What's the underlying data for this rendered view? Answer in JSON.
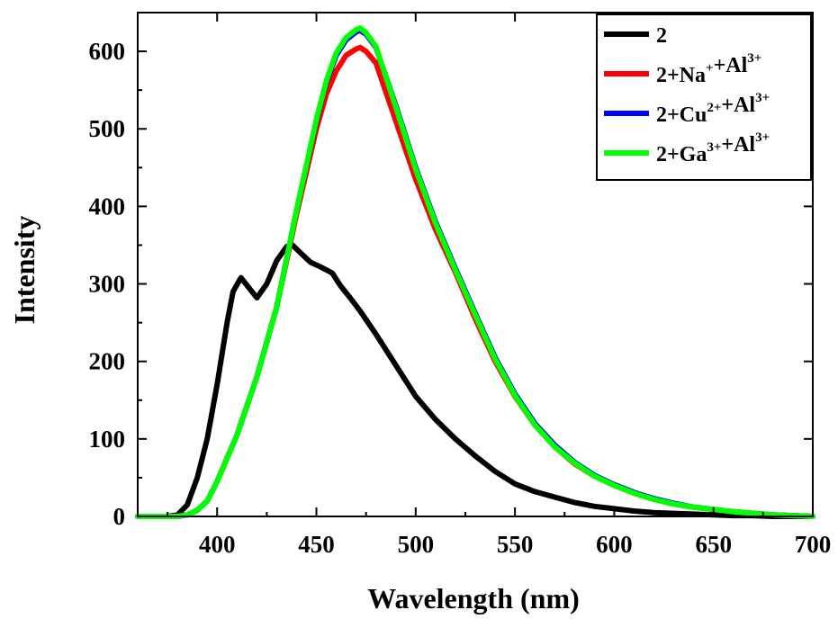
{
  "chart_data": {
    "type": "line",
    "title": "",
    "xlabel": "Wavelength (nm)",
    "ylabel": "Intensity",
    "xlim": [
      360,
      700
    ],
    "ylim": [
      0,
      650
    ],
    "x_ticks": [
      400,
      450,
      500,
      550,
      600,
      650,
      700
    ],
    "x_tick_labels": [
      "400",
      "450",
      "500",
      "550",
      "600",
      "650",
      "700"
    ],
    "y_ticks": [
      0,
      100,
      200,
      300,
      400,
      500,
      600
    ],
    "y_tick_labels": [
      "0",
      "100",
      "200",
      "300",
      "400",
      "500",
      "600"
    ],
    "grid": false,
    "legend_position": "top-right",
    "series": [
      {
        "name": "2",
        "legend_parts": [
          [
            "2",
            ""
          ]
        ],
        "color": "#000000",
        "x": [
          360,
          375,
          380,
          385,
          390,
          395,
          400,
          405,
          408,
          412,
          416,
          420,
          425,
          430,
          435,
          438,
          442,
          447,
          452,
          458,
          462,
          467,
          472,
          480,
          490,
          500,
          510,
          520,
          530,
          540,
          550,
          560,
          570,
          580,
          590,
          600,
          610,
          620,
          630,
          640,
          650,
          660,
          670,
          680,
          690,
          700
        ],
        "y": [
          0,
          0,
          2,
          15,
          50,
          100,
          170,
          250,
          290,
          308,
          295,
          282,
          300,
          330,
          348,
          350,
          340,
          328,
          322,
          314,
          298,
          282,
          265,
          235,
          195,
          155,
          125,
          100,
          78,
          58,
          42,
          32,
          25,
          18,
          13,
          10,
          7,
          5,
          4,
          3,
          2,
          1,
          1,
          0,
          0,
          0
        ]
      },
      {
        "name": "2+Na+ +Al3+",
        "legend_parts": [
          [
            "2+Na",
            "+"
          ],
          [
            "+Al",
            "3+"
          ]
        ],
        "color": "#ff0000",
        "x": [
          360,
          380,
          385,
          390,
          395,
          400,
          410,
          420,
          430,
          440,
          450,
          455,
          460,
          465,
          470,
          472,
          475,
          480,
          490,
          500,
          510,
          520,
          530,
          540,
          550,
          560,
          570,
          580,
          590,
          600,
          610,
          620,
          630,
          640,
          650,
          660,
          670,
          680,
          690,
          700
        ],
        "y": [
          0,
          0,
          2,
          8,
          20,
          45,
          105,
          180,
          270,
          390,
          500,
          545,
          575,
          595,
          603,
          605,
          600,
          585,
          510,
          435,
          370,
          315,
          255,
          200,
          155,
          118,
          90,
          68,
          52,
          40,
          30,
          22,
          16,
          12,
          9,
          6,
          4,
          2,
          1,
          0
        ]
      },
      {
        "name": "2+Cu2+ +Al3+",
        "legend_parts": [
          [
            "2+Cu",
            "2+"
          ],
          [
            "+Al",
            "3+"
          ]
        ],
        "color": "#0000ff",
        "x": [
          360,
          380,
          385,
          390,
          395,
          400,
          410,
          420,
          430,
          440,
          450,
          455,
          460,
          465,
          470,
          472,
          475,
          480,
          490,
          500,
          510,
          520,
          530,
          540,
          550,
          560,
          570,
          580,
          590,
          600,
          610,
          620,
          630,
          640,
          650,
          660,
          670,
          680,
          690,
          700
        ],
        "y": [
          0,
          0,
          2,
          8,
          20,
          45,
          105,
          180,
          270,
          395,
          510,
          560,
          595,
          615,
          625,
          627,
          622,
          605,
          530,
          450,
          380,
          320,
          262,
          205,
          158,
          120,
          92,
          70,
          53,
          41,
          31,
          23,
          17,
          12,
          9,
          6,
          4,
          2,
          1,
          0
        ]
      },
      {
        "name": "2+Ga3+ +Al3+",
        "legend_parts": [
          [
            "2+Ga",
            "3+"
          ],
          [
            "+Al",
            "3+"
          ]
        ],
        "color": "#00ff00",
        "x": [
          360,
          380,
          385,
          390,
          395,
          400,
          410,
          420,
          430,
          440,
          450,
          455,
          460,
          465,
          470,
          472,
          475,
          480,
          490,
          500,
          510,
          520,
          530,
          540,
          550,
          560,
          570,
          580,
          590,
          600,
          610,
          620,
          630,
          640,
          650,
          660,
          670,
          680,
          690,
          700
        ],
        "y": [
          0,
          0,
          2,
          8,
          20,
          45,
          105,
          180,
          270,
          395,
          512,
          562,
          598,
          618,
          628,
          630,
          624,
          606,
          528,
          448,
          378,
          318,
          260,
          203,
          156,
          118,
          90,
          69,
          52,
          40,
          30,
          22,
          16,
          12,
          9,
          6,
          4,
          2,
          1,
          0
        ]
      }
    ]
  }
}
